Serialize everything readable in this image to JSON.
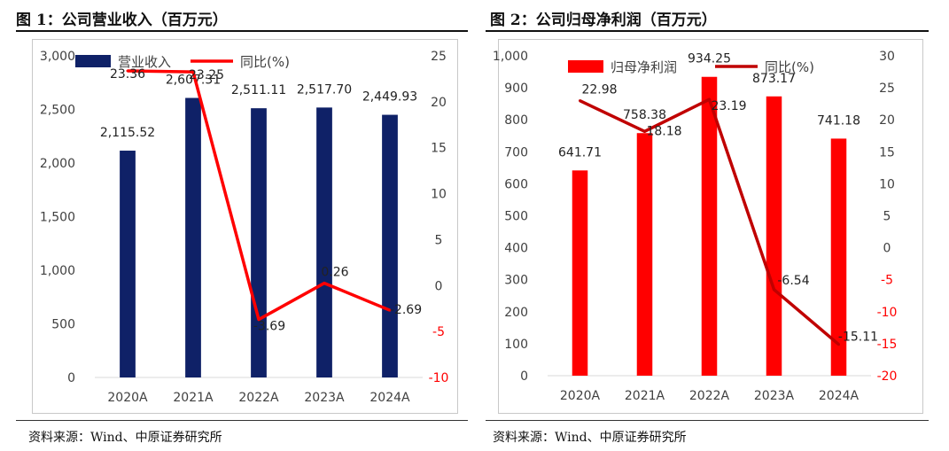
{
  "figures": {
    "left": {
      "title": "图 1：公司营业收入（百万元）",
      "source": "资料来源：Wind、中原证券研究所"
    },
    "right": {
      "title": "图 2：公司归母净利润（百万元）",
      "source": "资料来源：Wind、中原证券研究所"
    }
  },
  "chart_data": [
    {
      "type": "bar",
      "title": "公司营业收入（百万元）",
      "categories": [
        "2020A",
        "2021A",
        "2022A",
        "2023A",
        "2024A"
      ],
      "series": [
        {
          "name": "营业收入",
          "type": "bar",
          "axis": "left",
          "color": "#0f2167",
          "values": [
            2115.52,
            2607.31,
            2511.11,
            2517.7,
            2449.93
          ],
          "labels": [
            "2,115.52",
            "2,607.31",
            "2,511.11",
            "2,517.70",
            "2,449.93"
          ]
        },
        {
          "name": "同比(%)",
          "type": "line",
          "axis": "right",
          "color": "#ff0000",
          "values": [
            23.36,
            23.25,
            -3.69,
            0.26,
            -2.69
          ],
          "labels": [
            "23.36",
            "23.25",
            "-3.69",
            "0.26",
            "-2.69"
          ]
        }
      ],
      "y_left": {
        "min": 0,
        "max": 3000,
        "ticks": [
          0,
          500,
          1000,
          1500,
          2000,
          2500,
          3000
        ],
        "tick_labels": [
          "0",
          "500",
          "1,000",
          "1,500",
          "2,000",
          "2,500",
          "3,000"
        ]
      },
      "y_right": {
        "min": -10,
        "max": 25,
        "ticks": [
          -10,
          -5,
          0,
          5,
          10,
          15,
          20,
          25
        ],
        "tick_labels": [
          "-10",
          "-5",
          "0",
          "5",
          "10",
          "15",
          "20",
          "25"
        ],
        "negative_color": "#ff0000"
      },
      "legend": "top-left",
      "grid": false
    },
    {
      "type": "bar",
      "title": "公司归母净利润（百万元）",
      "categories": [
        "2020A",
        "2021A",
        "2022A",
        "2023A",
        "2024A"
      ],
      "series": [
        {
          "name": "归母净利润",
          "type": "bar",
          "axis": "left",
          "color": "#ff0000",
          "values": [
            641.71,
            758.38,
            934.25,
            873.17,
            741.18
          ],
          "labels": [
            "641.71",
            "758.38",
            "934.25",
            "873.17",
            "741.18"
          ]
        },
        {
          "name": "同比(%)",
          "type": "line",
          "axis": "right",
          "color": "#c00000",
          "values": [
            22.98,
            18.18,
            23.19,
            -6.54,
            -15.11
          ],
          "labels": [
            "22.98",
            "18.18",
            "23.19",
            "-6.54",
            "-15.11"
          ]
        }
      ],
      "y_left": {
        "min": 0,
        "max": 1000,
        "ticks": [
          0,
          100,
          200,
          300,
          400,
          500,
          600,
          700,
          800,
          900,
          1000
        ],
        "tick_labels": [
          "0",
          "100",
          "200",
          "300",
          "400",
          "500",
          "600",
          "700",
          "800",
          "900",
          "1,000"
        ]
      },
      "y_right": {
        "min": -20,
        "max": 30,
        "ticks": [
          -20,
          -15,
          -10,
          -5,
          0,
          5,
          10,
          15,
          20,
          25,
          30
        ],
        "tick_labels": [
          "-20",
          "-15",
          "-10",
          "-5",
          "0",
          "5",
          "10",
          "15",
          "20",
          "25",
          "30"
        ],
        "negative_color": "#ff0000"
      },
      "legend": "top-left",
      "grid": false
    }
  ]
}
